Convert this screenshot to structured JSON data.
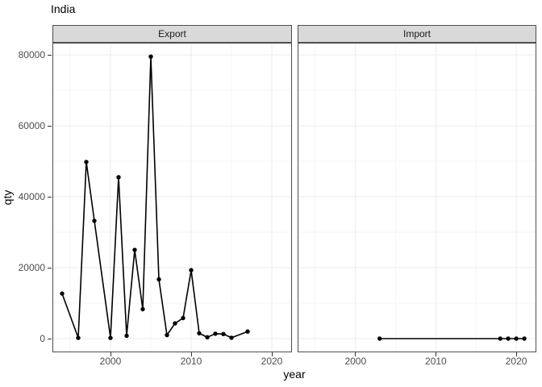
{
  "chart_data": {
    "type": "line",
    "title": "India",
    "xlabel": "year",
    "ylabel": "qty",
    "grid": true,
    "legend": "none",
    "xlim": [
      1992.8,
      2022.5
    ],
    "ylim": [
      -3860,
      83410
    ],
    "x_ticks": [
      2000,
      2010,
      2020
    ],
    "x_minor_ticks": [
      1995,
      2005,
      2015
    ],
    "y_ticks": [
      0,
      20000,
      40000,
      60000,
      80000
    ],
    "y_minor_ticks": [
      10000,
      30000,
      50000,
      70000
    ],
    "style": {
      "line_color": "#000000",
      "point_color": "#000000",
      "strip_fill": "#d9d9d9",
      "strip_border": "#4d4d4d",
      "panel_border": "#4d4d4d",
      "grid_major_color": "#ebebeb",
      "grid_minor_color": "#f5f5f5",
      "tick_color": "#333333",
      "tick_label_color": "#4d4d4d"
    },
    "facets": [
      {
        "label": "Export",
        "x": [
          1994,
          1996,
          1997,
          1998,
          2000,
          2001,
          2002,
          2003,
          2004,
          2005,
          2006,
          2007,
          2008,
          2009,
          2010,
          2011,
          2012,
          2013,
          2014,
          2015,
          2017
        ],
        "y": [
          12700,
          200,
          49800,
          33200,
          200,
          45500,
          800,
          25000,
          8300,
          79500,
          16700,
          1000,
          4300,
          5800,
          19300,
          1500,
          400,
          1400,
          1300,
          250,
          2000
        ]
      },
      {
        "label": "Import",
        "x": [
          2003,
          2018,
          2019,
          2020,
          2021
        ],
        "y": [
          0,
          0,
          0,
          0,
          0
        ]
      }
    ]
  }
}
